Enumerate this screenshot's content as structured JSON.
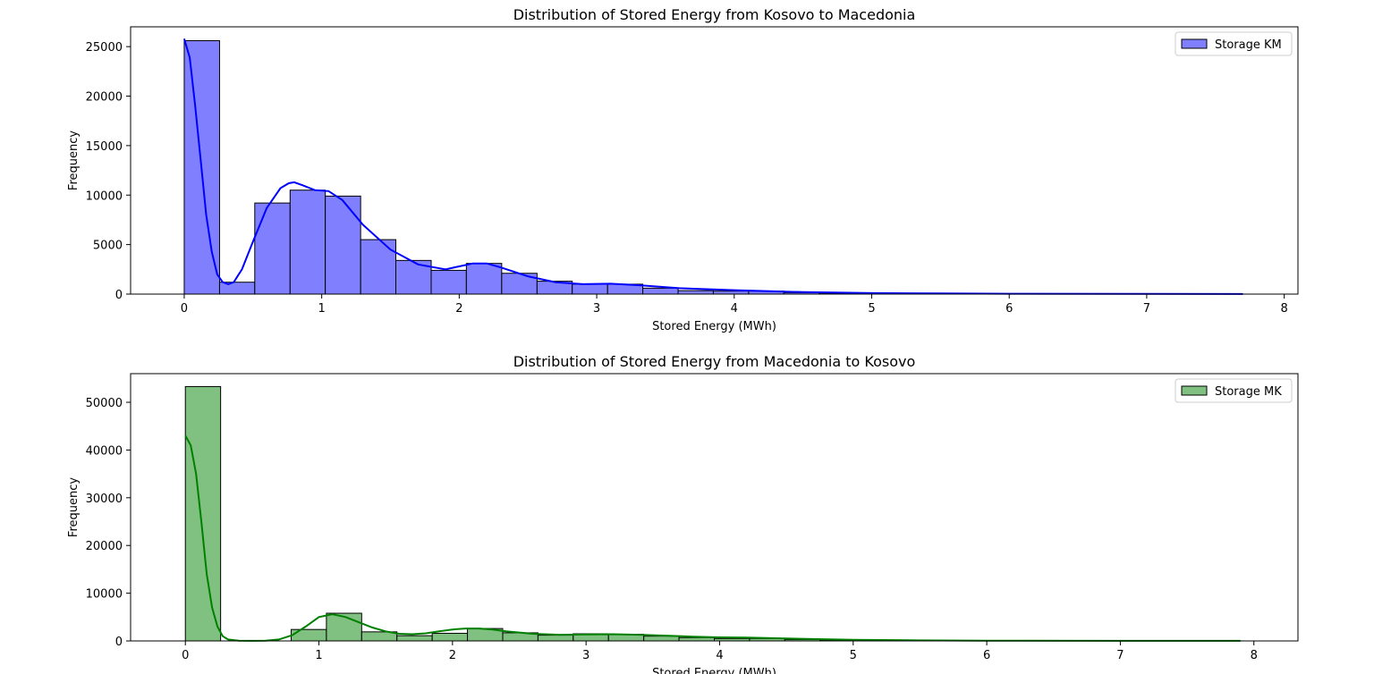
{
  "chart_data": [
    {
      "type": "histogram",
      "title": "Distribution of Stored Energy from Kosovo to Macedonia",
      "xlabel": "Stored Energy (MWh)",
      "ylabel": "Frequency",
      "xlim": [
        -0.39,
        8.1
      ],
      "ylim": [
        0,
        27000
      ],
      "xticks": [
        0,
        1,
        2,
        3,
        4,
        5,
        6,
        7,
        8
      ],
      "yticks": [
        0,
        5000,
        10000,
        15000,
        20000,
        25000
      ],
      "grid": false,
      "legend_position": "top-right",
      "bar_color": "#8080ff",
      "line_color": "#0000ff",
      "series": [
        {
          "name": "Storage KM"
        }
      ],
      "bin_edges": [
        0,
        0.257,
        0.513,
        0.77,
        1.026,
        1.283,
        1.539,
        1.796,
        2.052,
        2.309,
        2.566,
        2.822,
        3.079,
        3.335,
        3.592,
        3.848,
        4.105,
        4.361,
        4.618,
        4.874,
        5.131,
        5.387,
        5.644,
        5.901,
        6.157,
        6.414,
        6.67,
        6.927,
        7.183,
        7.44,
        7.696
      ],
      "counts": [
        25600,
        1200,
        9200,
        10500,
        9900,
        5500,
        3400,
        2400,
        3100,
        2100,
        1300,
        1000,
        1000,
        600,
        350,
        300,
        300,
        150,
        100,
        60,
        50,
        40,
        30,
        20,
        15,
        10,
        10,
        10,
        5,
        5
      ],
      "kde": {
        "x": [
          0,
          0.04,
          0.08,
          0.12,
          0.16,
          0.2,
          0.24,
          0.28,
          0.32,
          0.36,
          0.42,
          0.5,
          0.6,
          0.7,
          0.76,
          0.8,
          0.86,
          0.95,
          1.05,
          1.15,
          1.3,
          1.5,
          1.7,
          1.9,
          2.0,
          2.1,
          2.2,
          2.3,
          2.5,
          2.7,
          2.9,
          3.1,
          3.3,
          3.6,
          4.0,
          4.5,
          5.0,
          5.5,
          6.0,
          7.0,
          7.7
        ],
        "y": [
          25800,
          23900,
          19000,
          13500,
          8000,
          4300,
          2000,
          1200,
          1000,
          1200,
          2500,
          5300,
          8700,
          10700,
          11200,
          11300,
          11000,
          10500,
          10400,
          9500,
          7000,
          4500,
          3000,
          2500,
          2800,
          3100,
          3100,
          2700,
          1800,
          1200,
          1000,
          1050,
          900,
          600,
          400,
          200,
          100,
          60,
          40,
          20,
          10
        ]
      }
    },
    {
      "type": "histogram",
      "title": "Distribution of Stored Energy from Macedonia to Kosovo",
      "xlabel": "Stored Energy (MWh)",
      "ylabel": "Frequency",
      "xlim": [
        -0.41,
        8.33
      ],
      "ylim": [
        0,
        56000
      ],
      "xticks": [
        0,
        1,
        2,
        3,
        4,
        5,
        6,
        7,
        8
      ],
      "yticks": [
        0,
        10000,
        20000,
        30000,
        40000,
        50000
      ],
      "grid": false,
      "legend_position": "top-right",
      "bar_color": "#80c080",
      "line_color": "#008000",
      "series": [
        {
          "name": "Storage MK"
        }
      ],
      "bin_edges": [
        0,
        0.264,
        0.528,
        0.792,
        1.056,
        1.32,
        1.584,
        1.848,
        2.112,
        2.376,
        2.64,
        2.904,
        3.168,
        3.432,
        3.696,
        3.96,
        4.224,
        4.488,
        4.752,
        5.016,
        5.28,
        5.544,
        5.808,
        6.072,
        6.336,
        6.6,
        6.864,
        7.128,
        7.392,
        7.656,
        7.92
      ],
      "counts": [
        53300,
        0,
        0,
        2400,
        5800,
        1900,
        1100,
        1600,
        2600,
        1700,
        1200,
        1500,
        1400,
        1000,
        700,
        500,
        500,
        300,
        200,
        150,
        100,
        80,
        60,
        40,
        30,
        20,
        15,
        10,
        10,
        5
      ],
      "kde": {
        "x": [
          0,
          0.04,
          0.08,
          0.12,
          0.16,
          0.2,
          0.24,
          0.28,
          0.32,
          0.4,
          0.5,
          0.6,
          0.7,
          0.8,
          0.9,
          1.0,
          1.1,
          1.2,
          1.3,
          1.4,
          1.5,
          1.6,
          1.7,
          1.8,
          1.9,
          2.0,
          2.1,
          2.2,
          2.3,
          2.4,
          2.6,
          2.8,
          3.0,
          3.2,
          3.4,
          3.6,
          3.8,
          4.0,
          4.2,
          4.5,
          5.0,
          5.5,
          6.0,
          7.0,
          7.9
        ],
        "y": [
          43000,
          41000,
          35000,
          25000,
          14000,
          7000,
          3000,
          1000,
          300,
          50,
          20,
          50,
          300,
          1200,
          3000,
          5000,
          5600,
          5000,
          3900,
          2800,
          2000,
          1500,
          1400,
          1600,
          2000,
          2400,
          2600,
          2600,
          2400,
          2000,
          1500,
          1300,
          1350,
          1400,
          1300,
          1100,
          900,
          750,
          700,
          500,
          250,
          120,
          60,
          20,
          10
        ]
      }
    }
  ]
}
